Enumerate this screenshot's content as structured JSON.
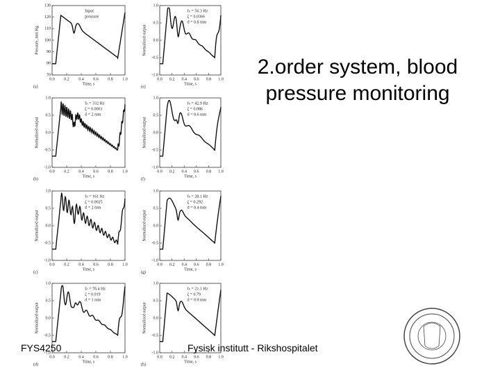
{
  "title": "2.order system, blood pressure monitoring",
  "footer": {
    "left": "FYS4250",
    "center": "Fysisk institutt - Rikshospitalet"
  },
  "figure": {
    "x_label": "Time, s",
    "x_ticks": [
      "0.0",
      "0.2",
      "0.4",
      "0.6",
      "0.8",
      "1.0"
    ],
    "panels": [
      {
        "label": "(a)",
        "y_label": "Pressure, mm Hg",
        "y_ticks": [
          "130",
          "120",
          "110",
          "100",
          "90",
          "80",
          "70"
        ],
        "annotation": [
          "Input",
          "pressure"
        ]
      },
      {
        "label": "(e)",
        "y_label": "Normalized output",
        "y_ticks": [
          "1.0",
          "0.5",
          "0.0",
          "-0.5",
          "-1.0"
        ],
        "annotation": [
          "fₙ = 56.3 Hz",
          "ζ = 0.0366",
          "d = 0.8 mm"
        ]
      },
      {
        "label": "(b)",
        "y_label": "Normalized output",
        "y_ticks": [
          "1.0",
          "0.5",
          "0.0",
          "-0.5",
          "-1.0"
        ],
        "annotation": [
          "fₙ = 332 Hz",
          "ζ = 0.0061",
          "d = 2 mm"
        ]
      },
      {
        "label": "(f)",
        "y_label": "Normalized output",
        "y_ticks": [
          "1.0",
          "0.5",
          "0.0",
          "-0.5",
          "-1.0"
        ],
        "annotation": [
          "fₙ = 42.9 Hz",
          "ζ = 0.086",
          "d = 0.6 mm"
        ]
      },
      {
        "label": "(c)",
        "y_label": "Normalized output",
        "y_ticks": [
          "1.0",
          "0.5",
          "0.0",
          "-0.5",
          "-1.0"
        ],
        "annotation": [
          "fₙ = 161 Hz",
          "ζ = 0.0025",
          "d = 2 mm"
        ]
      },
      {
        "label": "(g)",
        "y_label": "Normalized output",
        "y_ticks": [
          "1.0",
          "0.5",
          "0.0",
          "-0.5",
          "-1.0"
        ],
        "annotation": [
          "fₙ = 28.1 Hz",
          "ζ = 0.292",
          "d = 0.4 mm"
        ]
      },
      {
        "label": "(d)",
        "y_label": "Normalized output",
        "y_ticks": [
          "1.0",
          "0.5",
          "0.0",
          "-0.5",
          "-1.0"
        ],
        "annotation": [
          "fₙ = 76.4 Hz",
          "ζ = 0.019",
          "d = 1 mm"
        ]
      },
      {
        "label": "(h)",
        "y_label": "Normalized output",
        "y_ticks": [
          "1.0",
          "0.5",
          "0.0",
          "-0.5",
          "-1.0"
        ],
        "annotation": [
          "fₙ = 21.1 Hz",
          "ζ = 0.79",
          "d = 0.9 mm"
        ]
      }
    ]
  }
}
